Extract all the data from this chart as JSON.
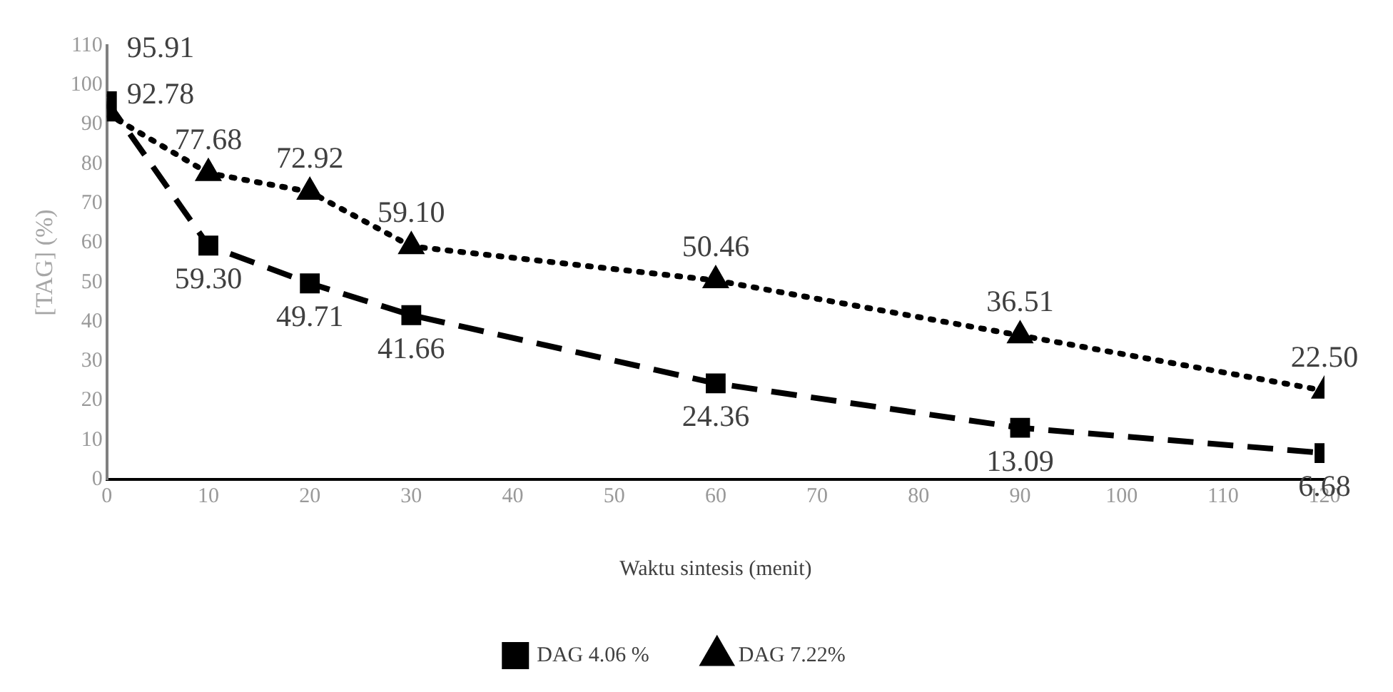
{
  "chart_data": {
    "type": "line",
    "xlabel": "Waktu sintesis (menit)",
    "ylabel": "[TAG] (%)",
    "x": [
      0,
      10,
      20,
      30,
      60,
      90,
      120
    ],
    "xlim": [
      0,
      120
    ],
    "xticks": [
      0,
      10,
      20,
      30,
      40,
      50,
      60,
      70,
      80,
      90,
      100,
      110,
      120
    ],
    "ylim": [
      0,
      110
    ],
    "yticks": [
      0,
      10,
      20,
      30,
      40,
      50,
      60,
      70,
      80,
      90,
      100,
      110
    ],
    "grid": false,
    "legend": "bottom",
    "series": [
      {
        "name": "DAG 4.06 %",
        "color": "#000000",
        "marker": "square",
        "line_style": "dashed",
        "values": [
          95.91,
          59.3,
          49.71,
          41.66,
          24.36,
          13.09,
          6.68
        ],
        "value_labels": [
          "95.91",
          "59.30",
          "49.71",
          "41.66",
          "24.36",
          "13.09",
          "6.68"
        ]
      },
      {
        "name": "DAG 7.22%",
        "color": "#000000",
        "marker": "triangle",
        "line_style": "dotted",
        "values": [
          92.78,
          77.68,
          72.92,
          59.1,
          50.46,
          36.51,
          22.5
        ],
        "value_labels": [
          "92.78",
          "77.68",
          "72.92",
          "59.10",
          "50.46",
          "36.51",
          "22.50"
        ]
      }
    ]
  }
}
